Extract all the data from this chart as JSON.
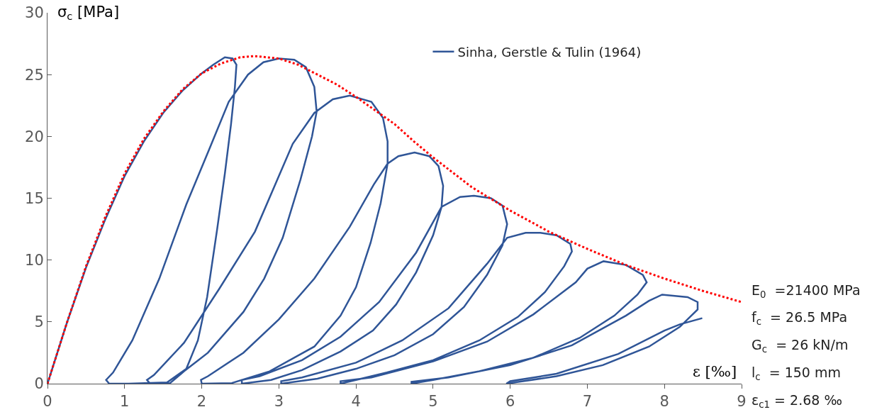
{
  "chart_data": {
    "type": "line",
    "xlabel": "ε [‰]",
    "ylabel": "σ$_{c}$ [MPa]",
    "xlim": [
      0,
      9
    ],
    "xticks": [
      0,
      1,
      2,
      3,
      4,
      5,
      6,
      7,
      8,
      9
    ],
    "ylim": [
      0,
      30
    ],
    "yticks": [
      0,
      5,
      10,
      15,
      20,
      25,
      30
    ],
    "grid": false,
    "legend": "top right",
    "marker": "none",
    "annotations": [
      "E$_{0}$  =21400 MPa",
      "f$_{c}$  = 26.5 MPa",
      "G$_{c}$  = 26 kN/m",
      "l$_{c}$  = 150 mm",
      "ε$_{c1}$ = 2.68 ‰"
    ],
    "series": [
      {
        "name": "Sinha, Gerstle & Tulin (1964)",
        "color": "#2f5597",
        "line_style": "solid",
        "x": [
          0,
          0.25,
          0.5,
          0.75,
          1,
          1.25,
          1.5,
          1.75,
          2,
          2.15,
          2.3,
          2.4,
          2.45,
          2.43,
          2.38,
          2.3,
          2.2,
          2.07,
          1.95,
          1.8,
          1.55,
          1.05,
          0.8,
          0.76,
          0.85,
          1.1,
          1.45,
          1.8,
          2.1,
          2.35,
          2.6,
          2.8,
          3.0,
          3.2,
          3.35,
          3.46,
          3.49,
          3.43,
          3.28,
          3.05,
          2.81,
          2.54,
          2.08,
          1.77,
          1.59,
          1.33,
          1.29,
          1.38,
          1.77,
          2.23,
          2.69,
          3.18,
          3.46,
          3.7,
          3.92,
          4.2,
          4.35,
          4.41,
          4.41,
          4.32,
          4.19,
          4.0,
          3.8,
          3.46,
          2.88,
          2.39,
          2.0,
          1.99,
          2.08,
          2.54,
          3.0,
          3.46,
          3.92,
          4.23,
          4.41,
          4.55,
          4.76,
          4.95,
          5.07,
          5.13,
          5.11,
          5.0,
          4.78,
          4.52,
          4.22,
          3.8,
          3.3,
          2.9,
          2.52,
          2.52,
          2.75,
          3.3,
          3.8,
          4.3,
          4.78,
          5.11,
          5.35,
          5.53,
          5.75,
          5.9,
          5.96,
          5.9,
          5.7,
          5.4,
          5.0,
          4.5,
          4.0,
          3.5,
          3.03,
          3.03,
          3.3,
          4.0,
          4.6,
          5.2,
          5.7,
          5.96,
          6.2,
          6.39,
          6.6,
          6.78,
          6.8,
          6.7,
          6.45,
          6.1,
          5.6,
          5.0,
          4.4,
          4.0,
          3.8,
          3.8,
          4.2,
          5.0,
          5.7,
          6.3,
          6.85,
          7.0,
          7.21,
          7.5,
          7.72,
          7.77,
          7.65,
          7.35,
          6.9,
          6.3,
          5.6,
          5.0,
          4.72,
          4.72,
          5.2,
          6.0,
          6.8,
          7.5,
          7.8,
          7.97,
          8.3,
          8.43,
          8.43,
          8.2,
          7.8,
          7.2,
          6.6,
          5.95,
          6.0,
          6.6,
          7.4,
          8.0,
          8.2,
          8.49
        ],
        "values": [
          0,
          4.9,
          9.4,
          13.3,
          16.8,
          19.6,
          21.9,
          23.7,
          25.1,
          25.8,
          26.4,
          26.3,
          25.8,
          24,
          21,
          17,
          12.5,
          7,
          3.5,
          1.2,
          0.1,
          0,
          0,
          0.3,
          0.9,
          3.5,
          8.5,
          14.5,
          19,
          22.8,
          25,
          26,
          26.3,
          26.2,
          25.6,
          24,
          22,
          20,
          16.5,
          11.8,
          8.5,
          5.8,
          2.5,
          1.0,
          0.05,
          0,
          0.3,
          0.7,
          3.3,
          7.7,
          12.3,
          19.4,
          21.9,
          23.0,
          23.3,
          22.8,
          21.5,
          19.6,
          17.8,
          14.6,
          11.4,
          7.8,
          5.5,
          3.0,
          1.0,
          0.05,
          0,
          0.3,
          0.6,
          2.5,
          5.2,
          8.5,
          12.7,
          16.1,
          17.8,
          18.4,
          18.7,
          18.4,
          17.6,
          16.0,
          14.3,
          12.0,
          9.0,
          6.4,
          4.3,
          2.6,
          1.1,
          0.3,
          0,
          0.3,
          0.6,
          1.9,
          3.8,
          6.6,
          10.6,
          14.3,
          15.1,
          15.2,
          15.0,
          14.4,
          12.9,
          11.2,
          8.8,
          6.2,
          4.0,
          2.3,
          1.2,
          0.4,
          0,
          0.2,
          0.5,
          1.7,
          3.5,
          6.1,
          9.7,
          11.8,
          12.2,
          12.2,
          12.0,
          11.3,
          10.7,
          9.5,
          7.4,
          5.4,
          3.5,
          1.9,
          0.9,
          0.3,
          0,
          0.2,
          0.5,
          1.8,
          3.4,
          5.6,
          8.2,
          9.3,
          9.9,
          9.6,
          8.8,
          8.2,
          7.2,
          5.5,
          3.7,
          2.1,
          1.0,
          0.3,
          0,
          0.15,
          0.5,
          1.5,
          3.1,
          5.5,
          6.7,
          7.2,
          7.0,
          6.6,
          6.0,
          4.6,
          3.0,
          1.5,
          0.6,
          0,
          0.2,
          0.8,
          2.4,
          4.3,
          4.8,
          5.3
        ]
      },
      {
        "color": "#ff0000",
        "line_style": "dotted",
        "x": [
          0,
          0.25,
          0.5,
          0.75,
          1,
          1.25,
          1.5,
          1.75,
          2,
          2.25,
          2.5,
          2.68,
          3.0,
          3.25,
          3.5,
          3.75,
          4.0,
          4.25,
          4.5,
          4.75,
          5.0,
          5.5,
          6.0,
          6.5,
          7.0,
          7.5,
          8.0,
          8.5,
          9.0
        ],
        "values": [
          0,
          4.9,
          9.5,
          13.5,
          17,
          19.8,
          22.0,
          23.8,
          25.1,
          25.9,
          26.4,
          26.5,
          26.3,
          25.8,
          25.0,
          24.2,
          23.2,
          22.1,
          21.0,
          19.6,
          18.3,
          15.9,
          14.0,
          12.3,
          10.9,
          9.6,
          8.5,
          7.5,
          6.6
        ]
      }
    ]
  }
}
